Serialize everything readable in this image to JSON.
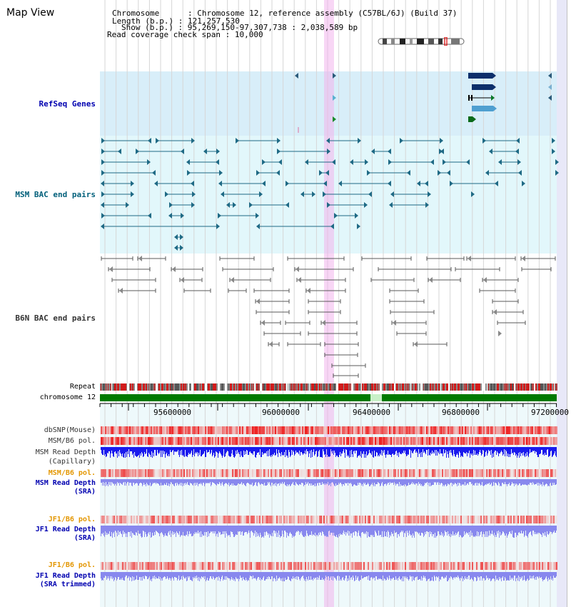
{
  "header": {
    "title": "Map View",
    "chromosome_label": "Chromosome",
    "chromosome_value": "Chromosome 12, reference assembly (C57BL/6J) (Build 37)",
    "length_label": "Length (b.p.)",
    "length_value": "121,257,530",
    "show_label": "Show (b.p.)",
    "show_value": "95,269,150-97,307,738 : 2,038,589 bp",
    "read_cov_label": "Read coverage check span",
    "read_cov_value": "10,000",
    "separator": ":"
  },
  "tracks": {
    "refseq": "RefSeq Genes",
    "msm_bac": "MSM BAC end pairs",
    "b6n_bac": "B6N BAC end pairs",
    "repeat": "Repeat",
    "chromosome": "chromosome 12",
    "dbsnp": "dbSNP(Mouse)",
    "msm_b6_pol": "MSM/B6 pol.",
    "msm_read_depth_cap_1": "MSM Read Depth",
    "msm_read_depth_cap_2": "(Capillary)",
    "msm_b6_pol_sra": "MSM/B6 pol.",
    "msm_read_depth_sra_1": "MSM Read Depth",
    "msm_read_depth_sra_2": "(SRA)",
    "jf1_b6_pol": "JF1/B6 pol.",
    "jf1_read_depth_sra_1": "JF1 Read Depth",
    "jf1_read_depth_sra_2": "(SRA)",
    "jf1_b6_pol_trim": "JF1/B6 pol.",
    "jf1_read_depth_trim_1": "JF1 Read Depth",
    "jf1_read_depth_trim_2": "(SRA trimmed)"
  },
  "ruler": {
    "ticks": [
      "95600000",
      "96000000",
      "96400000",
      "96800000",
      "97200000"
    ]
  },
  "colors": {
    "refseq_bg": "#d8eef9",
    "msm_bg": "#e2f7fb",
    "highlight": "#f4c6ee",
    "repeat_red": "#d11a1a",
    "chrom_green": "#007a00",
    "depth_blue_dark": "#1a1aee",
    "depth_blue_light": "#8888ee",
    "label_blue": "#0000b0",
    "label_teal": "#005f7a",
    "label_orange": "#e39600",
    "label_gray": "#333333"
  }
}
